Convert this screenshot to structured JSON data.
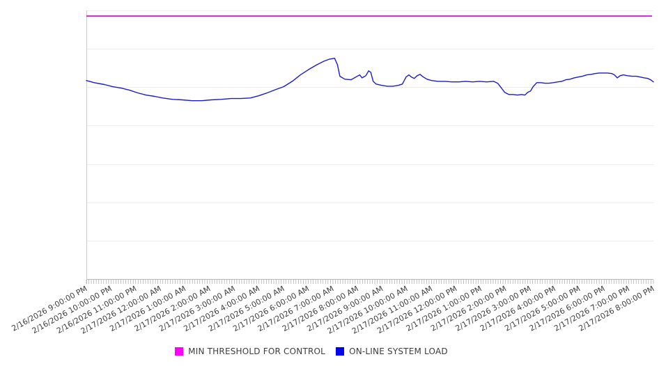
{
  "page": {
    "background": "#ffffff"
  },
  "chart_data": {
    "type": "line",
    "title": "",
    "x_tick_labels": [
      "2/16/2026 9:00:00 PM",
      "2/16/2026 10:00:00 PM",
      "2/16/2026 11:00:00 PM",
      "2/17/2026 12:00:00 AM",
      "2/17/2026 1:00:00 AM",
      "2/17/2026 2:00:00 AM",
      "2/17/2026 3:00:00 AM",
      "2/17/2026 4:00:00 AM",
      "2/17/2026 5:00:00 AM",
      "2/17/2026 6:00:00 AM",
      "2/17/2026 7:00:00 AM",
      "2/17/2026 8:00:00 AM",
      "2/17/2026 9:00:00 AM",
      "2/17/2026 10:00:00 AM",
      "2/17/2026 11:00:00 AM",
      "2/17/2026 12:00:00 PM",
      "2/17/2026 1:00:00 PM",
      "2/17/2026 2:00:00 PM",
      "2/17/2026 3:00:00 PM",
      "2/17/2026 4:00:00 PM",
      "2/17/2026 5:00:00 PM",
      "2/17/2026 6:00:00 PM",
      "2/17/2026 7:00:00 PM",
      "2/17/2026 8:00:00 PM"
    ],
    "x_axis": {
      "range_minutes": [
        0,
        1380
      ],
      "hour_label_interval_minutes": 60,
      "minor_tick_interval_minutes": 6,
      "tick_color": "#a6a6a6",
      "axis_line_color": "#b8b8b8",
      "y_axis_line_color": "#c9c9c9",
      "label_color": "#3d3d3d"
    },
    "y_axis": {
      "labeled": false,
      "unit": "percent-of-plot-height",
      "range": [
        0,
        100
      ]
    },
    "grid": "on",
    "gridlines": [
      {
        "value": 100,
        "color": "#f0f0f0"
      },
      {
        "value": 85.71,
        "color": "#ececec"
      },
      {
        "value": 71.43,
        "color": "#f1ecd9"
      },
      {
        "value": 57.14,
        "color": "#ececec"
      },
      {
        "value": 42.86,
        "color": "#ececec"
      },
      {
        "value": 28.57,
        "color": "#ececec"
      },
      {
        "value": 14.29,
        "color": "#ececec"
      },
      {
        "value": 0,
        "color": "#b8b8b8"
      }
    ],
    "legend": {
      "position": "bottom",
      "entries": [
        {
          "label": "MIN THRESHOLD FOR CONTROL",
          "swatch_color": "#ff00ff",
          "line_color": "#cc29cc"
        },
        {
          "label": "ON-LINE SYSTEM LOAD",
          "swatch_color": "#0000ee",
          "line_color": "#1b1bc8"
        }
      ]
    },
    "series": [
      {
        "name": "MIN THRESHOLD FOR CONTROL",
        "type": "threshold",
        "value": 97.9
      },
      {
        "name": "ON-LINE SYSTEM LOAD",
        "type": "line",
        "points": [
          [
            0,
            73.9
          ],
          [
            19,
            73.1
          ],
          [
            44,
            72.4
          ],
          [
            64,
            71.6
          ],
          [
            85,
            71.1
          ],
          [
            105,
            70.3
          ],
          [
            125,
            69.3
          ],
          [
            145,
            68.5
          ],
          [
            166,
            68.0
          ],
          [
            186,
            67.4
          ],
          [
            210,
            66.9
          ],
          [
            233,
            66.7
          ],
          [
            257,
            66.4
          ],
          [
            281,
            66.4
          ],
          [
            304,
            66.7
          ],
          [
            328,
            66.9
          ],
          [
            352,
            67.2
          ],
          [
            375,
            67.2
          ],
          [
            399,
            67.4
          ],
          [
            419,
            68.2
          ],
          [
            440,
            69.3
          ],
          [
            460,
            70.5
          ],
          [
            480,
            71.6
          ],
          [
            501,
            73.6
          ],
          [
            521,
            76.0
          ],
          [
            541,
            78.0
          ],
          [
            561,
            79.8
          ],
          [
            578,
            81.1
          ],
          [
            592,
            81.9
          ],
          [
            604,
            82.2
          ],
          [
            611,
            79.8
          ],
          [
            617,
            75.5
          ],
          [
            629,
            74.4
          ],
          [
            644,
            74.2
          ],
          [
            656,
            75.2
          ],
          [
            665,
            76.0
          ],
          [
            671,
            74.9
          ],
          [
            680,
            75.7
          ],
          [
            687,
            77.5
          ],
          [
            692,
            77.0
          ],
          [
            698,
            73.6
          ],
          [
            705,
            72.6
          ],
          [
            719,
            72.1
          ],
          [
            732,
            71.8
          ],
          [
            746,
            71.8
          ],
          [
            759,
            72.1
          ],
          [
            769,
            72.6
          ],
          [
            778,
            75.2
          ],
          [
            785,
            76.0
          ],
          [
            791,
            75.2
          ],
          [
            798,
            74.7
          ],
          [
            805,
            75.7
          ],
          [
            812,
            76.2
          ],
          [
            820,
            75.2
          ],
          [
            829,
            74.4
          ],
          [
            840,
            73.9
          ],
          [
            856,
            73.6
          ],
          [
            873,
            73.6
          ],
          [
            889,
            73.4
          ],
          [
            906,
            73.4
          ],
          [
            923,
            73.6
          ],
          [
            940,
            73.4
          ],
          [
            957,
            73.6
          ],
          [
            974,
            73.4
          ],
          [
            991,
            73.6
          ],
          [
            1001,
            72.9
          ],
          [
            1010,
            71.1
          ],
          [
            1018,
            69.5
          ],
          [
            1028,
            68.7
          ],
          [
            1038,
            68.7
          ],
          [
            1049,
            68.5
          ],
          [
            1059,
            68.7
          ],
          [
            1067,
            68.5
          ],
          [
            1074,
            69.5
          ],
          [
            1081,
            70.0
          ],
          [
            1087,
            71.6
          ],
          [
            1096,
            73.1
          ],
          [
            1106,
            73.1
          ],
          [
            1116,
            72.9
          ],
          [
            1126,
            72.9
          ],
          [
            1136,
            73.1
          ],
          [
            1147,
            73.4
          ],
          [
            1157,
            73.6
          ],
          [
            1167,
            74.2
          ],
          [
            1177,
            74.4
          ],
          [
            1187,
            74.9
          ],
          [
            1197,
            75.2
          ],
          [
            1207,
            75.5
          ],
          [
            1218,
            76.0
          ],
          [
            1228,
            76.2
          ],
          [
            1238,
            76.5
          ],
          [
            1248,
            76.7
          ],
          [
            1258,
            76.7
          ],
          [
            1268,
            76.7
          ],
          [
            1279,
            76.5
          ],
          [
            1285,
            76.0
          ],
          [
            1292,
            74.9
          ],
          [
            1299,
            75.7
          ],
          [
            1307,
            76.0
          ],
          [
            1317,
            75.7
          ],
          [
            1328,
            75.5
          ],
          [
            1338,
            75.5
          ],
          [
            1348,
            75.2
          ],
          [
            1358,
            74.9
          ],
          [
            1366,
            74.7
          ],
          [
            1373,
            74.2
          ],
          [
            1380,
            73.4
          ]
        ]
      }
    ]
  }
}
